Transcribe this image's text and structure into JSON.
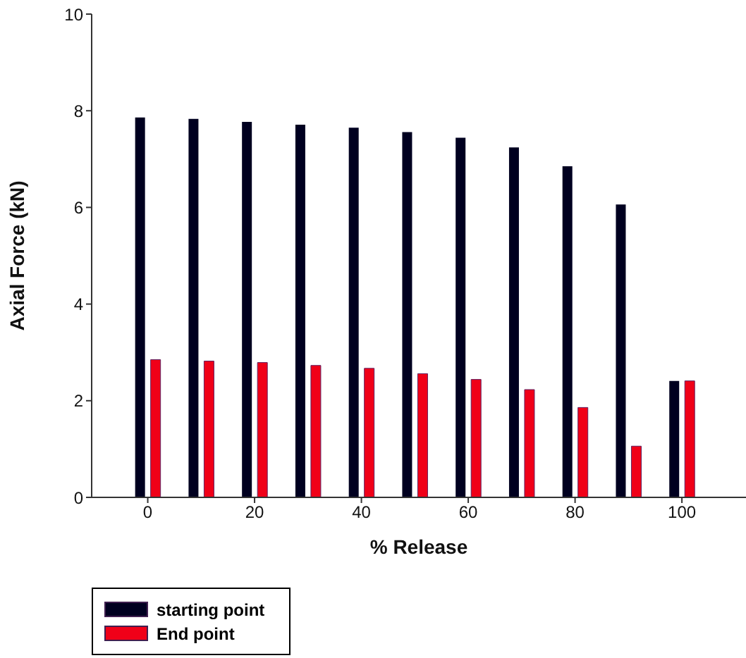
{
  "chart_data": {
    "type": "bar",
    "xlabel": "% Release",
    "ylabel": "Axial Force (kN)",
    "x": [
      0,
      10,
      20,
      30,
      40,
      50,
      60,
      70,
      80,
      90,
      100
    ],
    "series": [
      {
        "name": "starting point",
        "color": "#000020",
        "values": [
          7.86,
          7.83,
          7.77,
          7.71,
          7.65,
          7.56,
          7.44,
          7.24,
          6.85,
          6.06,
          2.41
        ]
      },
      {
        "name": "End point",
        "color": "#f00018",
        "values": [
          2.85,
          2.82,
          2.79,
          2.73,
          2.67,
          2.56,
          2.44,
          2.23,
          1.86,
          1.06,
          2.41
        ]
      }
    ],
    "xlim": [
      -10.5,
      112
    ],
    "xticks": [
      0,
      20,
      40,
      60,
      80,
      100
    ],
    "ylim": [
      0,
      10
    ],
    "yticks": [
      0,
      2,
      4,
      6,
      8,
      10
    ],
    "grid": false,
    "legend": "bottom left"
  }
}
